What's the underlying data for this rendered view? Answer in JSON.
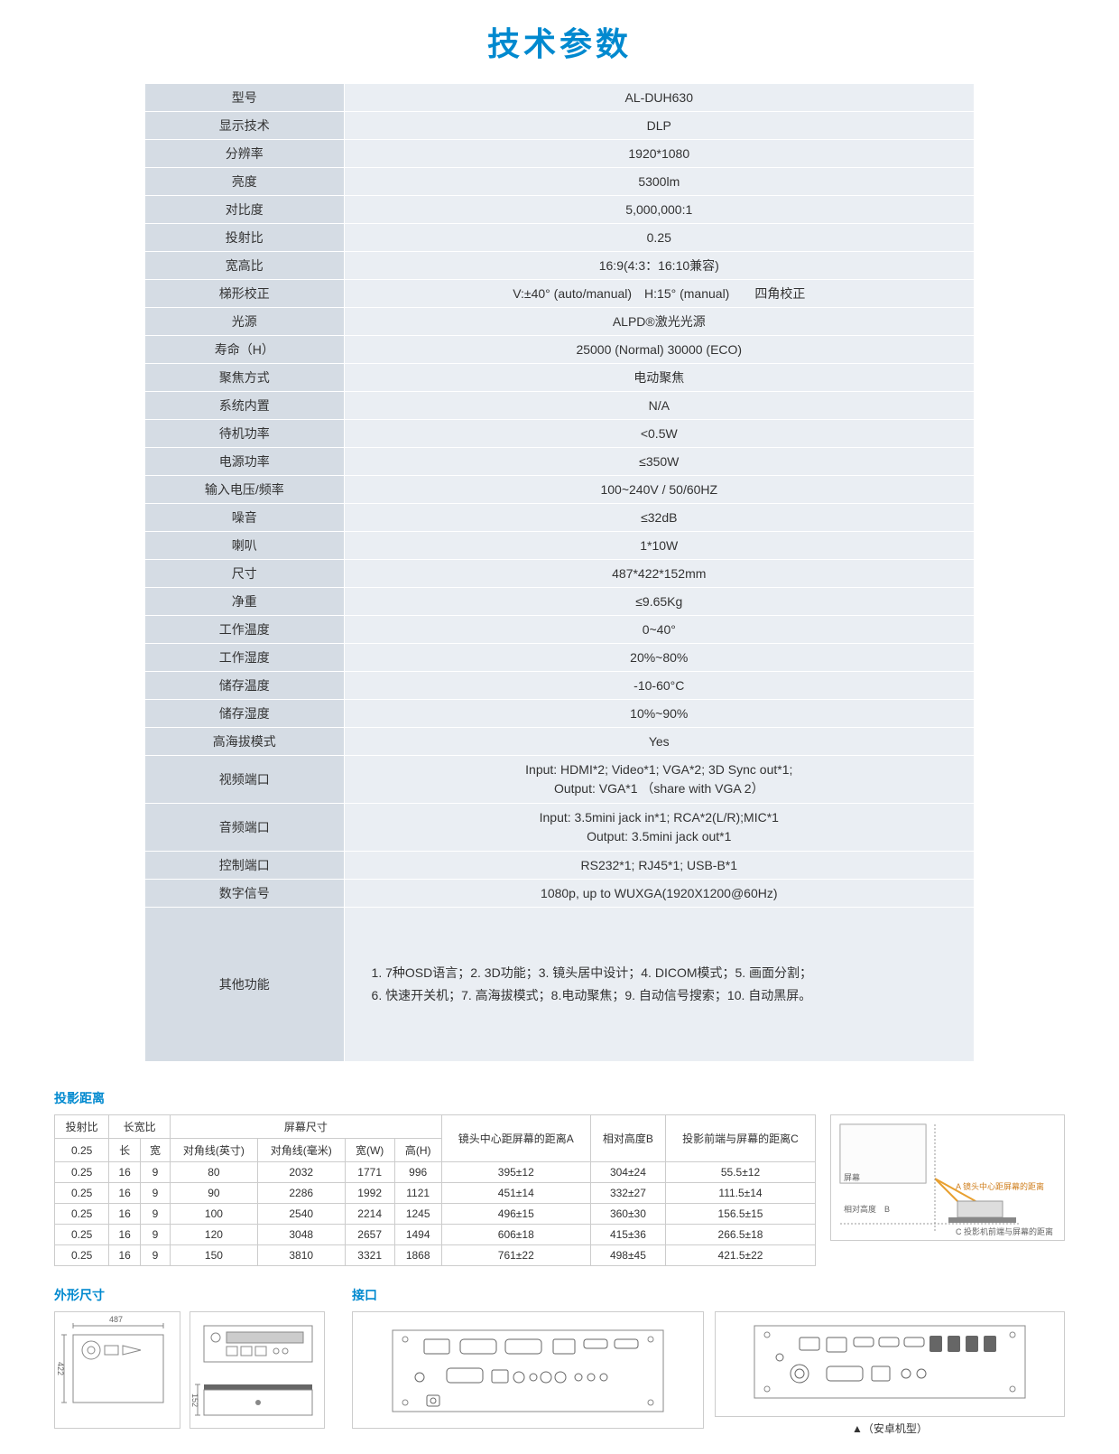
{
  "title": "技术参数",
  "colors": {
    "accent": "#0089cf",
    "label_bg": "#d5dce4",
    "value_bg": "#eaeef3",
    "border": "#cccccc",
    "text": "#333333",
    "bg": "#ffffff"
  },
  "specs": [
    {
      "label": "型号",
      "value": "AL-DUH630"
    },
    {
      "label": "显示技术",
      "value": "DLP"
    },
    {
      "label": "分辨率",
      "value": "1920*1080"
    },
    {
      "label": "亮度",
      "value": "5300lm"
    },
    {
      "label": "对比度",
      "value": "5,000,000:1"
    },
    {
      "label": "投射比",
      "value": "0.25"
    },
    {
      "label": "宽高比",
      "value": "16:9(4:3：16:10兼容)"
    },
    {
      "label": "梯形校正",
      "value": "V:±40° (auto/manual)　H:15° (manual)　　四角校正"
    },
    {
      "label": "光源",
      "value": "ALPD®激光光源"
    },
    {
      "label": "寿命（H）",
      "value": "25000 (Normal) 30000 (ECO)"
    },
    {
      "label": "聚焦方式",
      "value": "电动聚焦"
    },
    {
      "label": "系统内置",
      "value": "N/A"
    },
    {
      "label": "待机功率",
      "value": "<0.5W"
    },
    {
      "label": "电源功率",
      "value": "≤350W"
    },
    {
      "label": "输入电压/频率",
      "value": "100~240V  /  50/60HZ"
    },
    {
      "label": "噪音",
      "value": "≤32dB"
    },
    {
      "label": "喇叭",
      "value": "1*10W"
    },
    {
      "label": "尺寸",
      "value": "487*422*152mm"
    },
    {
      "label": "净重",
      "value": "≤9.65Kg"
    },
    {
      "label": "工作温度",
      "value": "0~40°"
    },
    {
      "label": "工作湿度",
      "value": "20%~80%"
    },
    {
      "label": "储存温度",
      "value": "-10-60°C"
    },
    {
      "label": "储存湿度",
      "value": "10%~90%"
    },
    {
      "label": "高海拔模式",
      "value": "Yes"
    },
    {
      "label": "视频端口",
      "value": "Input: HDMI*2; Video*1; VGA*2; 3D Sync out*1;\nOutput: VGA*1 （share with VGA 2）",
      "multi": true
    },
    {
      "label": "音频端口",
      "value": "Input: 3.5mini jack in*1; RCA*2(L/R);MIC*1\nOutput: 3.5mini jack out*1",
      "multi": true
    },
    {
      "label": "控制端口",
      "value": "RS232*1; RJ45*1; USB-B*1"
    },
    {
      "label": "数字信号",
      "value": "1080p, up to WUXGA(1920X1200@60Hz)"
    },
    {
      "label": "其他功能",
      "value": "1. 7种OSD语言；2. 3D功能；3. 镜头居中设计；4. DICOM模式；5. 画面分割；\n6. 快速开关机；7. 高海拔模式；8.电动聚焦；9. 自动信号搜索；10. 自动黑屏。",
      "features": true
    }
  ],
  "projection_distance": {
    "section_label": "投影距离",
    "headers": {
      "ratio": "投射比",
      "aspect": "长宽比",
      "screen": "屏幕尺寸",
      "len": "长",
      "wid": "宽",
      "diag_in": "对角线(英寸)",
      "diag_mm": "对角线(毫米)",
      "w": "宽(W)",
      "h": "高(H)",
      "distA": "镜头中心距屏幕的距离A",
      "heightB": "相对高度B",
      "distC": "投影前端与屏幕的距离C"
    },
    "rows": [
      {
        "ratio": "0.25",
        "len": "16",
        "wid": "9",
        "diag_in": "80",
        "diag_mm": "2032",
        "w": "1771",
        "h": "996",
        "A": "395±12",
        "B": "304±24",
        "C": "55.5±12"
      },
      {
        "ratio": "0.25",
        "len": "16",
        "wid": "9",
        "diag_in": "90",
        "diag_mm": "2286",
        "w": "1992",
        "h": "1121",
        "A": "451±14",
        "B": "332±27",
        "C": "111.5±14"
      },
      {
        "ratio": "0.25",
        "len": "16",
        "wid": "9",
        "diag_in": "100",
        "diag_mm": "2540",
        "w": "2214",
        "h": "1245",
        "A": "496±15",
        "B": "360±30",
        "C": "156.5±15"
      },
      {
        "ratio": "0.25",
        "len": "16",
        "wid": "9",
        "diag_in": "120",
        "diag_mm": "3048",
        "w": "2657",
        "h": "1494",
        "A": "606±18",
        "B": "415±36",
        "C": "266.5±18"
      },
      {
        "ratio": "0.25",
        "len": "16",
        "wid": "9",
        "diag_in": "150",
        "diag_mm": "3810",
        "w": "3321",
        "h": "1868",
        "A": "761±22",
        "B": "498±45",
        "C": "421.5±22"
      }
    ],
    "sub_ratio": "0.25"
  },
  "diagram_labels": {
    "screen": "屏幕",
    "A": "A 镜头中心距屏幕的距离",
    "B": "相对高度　B",
    "C": "C 投影机前端与屏幕的距离"
  },
  "dimensions_label": "外形尺寸",
  "dimension_values": {
    "width": "487",
    "depth": "422",
    "height": "152"
  },
  "ports_label": "接口",
  "ports_caption": "▲（安卓机型）"
}
